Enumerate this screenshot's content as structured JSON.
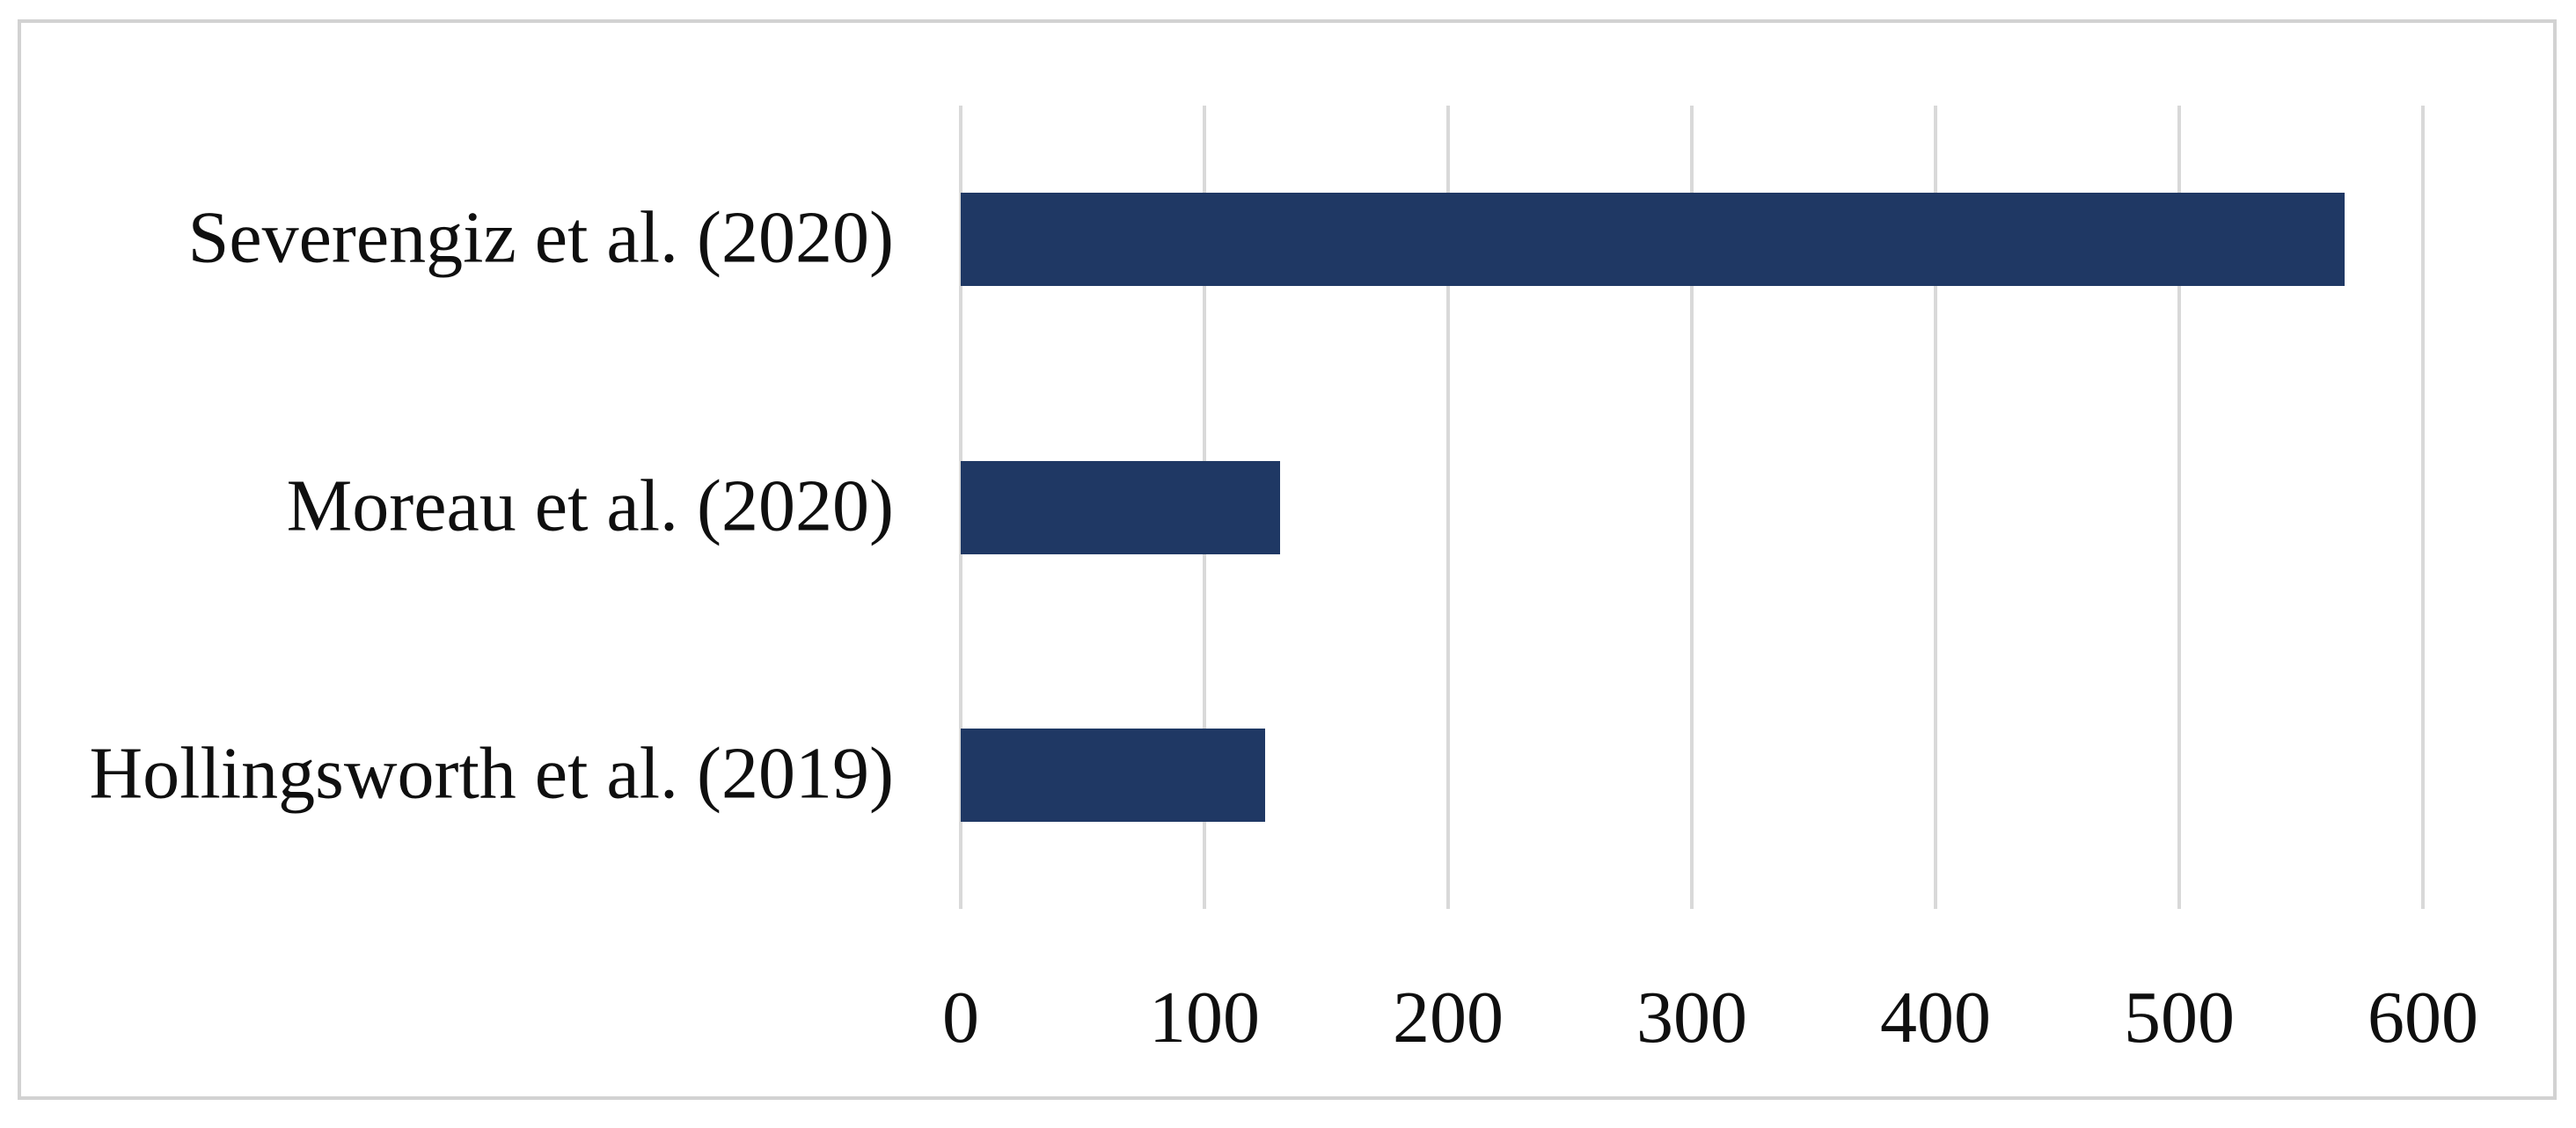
{
  "figure": {
    "background": "#ffffff",
    "frame_border_color": "#d2d2d2"
  },
  "chart_data": {
    "type": "bar",
    "orientation": "horizontal",
    "title": "",
    "xlabel": "",
    "ylabel": "",
    "categories": [
      "Severengiz et al. (2020)",
      "Moreau et al. (2020)",
      "Hollingsworth et al. (2019)"
    ],
    "values": [
      568,
      131,
      125
    ],
    "xlim": [
      0,
      600
    ],
    "xticks": [
      0,
      100,
      200,
      300,
      400,
      500,
      600
    ],
    "xtick_labels": [
      "0",
      "100",
      "200",
      "300",
      "400",
      "500",
      "600"
    ],
    "grid": "vertical-gridlines-only",
    "legend_position": "none",
    "colors": {
      "bar": "#1f3864",
      "gridline": "#d9d9d9",
      "text": "#0f0f0f",
      "frame_border": "#d2d2d2",
      "background": "#ffffff"
    }
  }
}
